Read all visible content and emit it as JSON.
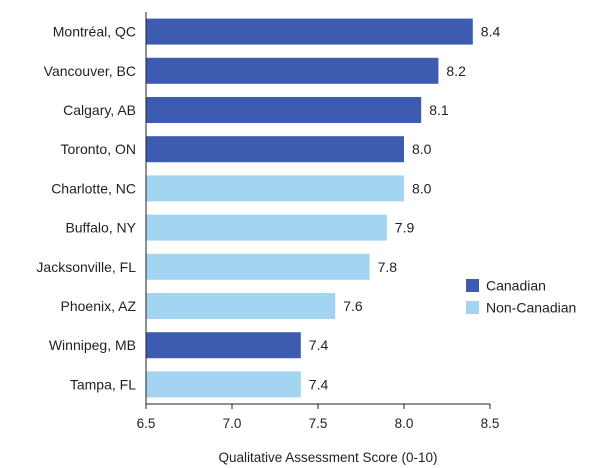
{
  "chart_data": {
    "type": "bar",
    "orientation": "horizontal",
    "categories": [
      "Montréal, QC",
      "Vancouver, BC",
      "Calgary, AB",
      "Toronto, ON",
      "Charlotte, NC",
      "Buffalo, NY",
      "Jacksonville, FL",
      "Phoenix, AZ",
      "Winnipeg, MB",
      "Tampa, FL"
    ],
    "values": [
      8.4,
      8.2,
      8.1,
      8.0,
      8.0,
      7.9,
      7.8,
      7.6,
      7.4,
      7.4
    ],
    "value_labels": [
      "8.4",
      "8.2",
      "8.1",
      "8.0",
      "8.0",
      "7.9",
      "7.8",
      "7.6",
      "7.4",
      "7.4"
    ],
    "groups": [
      "Canadian",
      "Canadian",
      "Canadian",
      "Canadian",
      "Non-Canadian",
      "Non-Canadian",
      "Non-Canadian",
      "Non-Canadian",
      "Canadian",
      "Non-Canadian"
    ],
    "xlabel": "Qualitative Assessment Score (0-10)",
    "ylabel": "",
    "title": "",
    "xlim": [
      6.5,
      8.5
    ],
    "xticks": [
      6.5,
      7.0,
      7.5,
      8.0,
      8.5
    ],
    "xtick_labels": [
      "6.5",
      "7.0",
      "7.5",
      "8.0",
      "8.5"
    ],
    "grid": false,
    "legend": {
      "position": "right",
      "entries": [
        {
          "name": "Canadian",
          "color": "#3d5bb0"
        },
        {
          "name": "Non-Canadian",
          "color": "#a3d4f2"
        }
      ]
    }
  }
}
